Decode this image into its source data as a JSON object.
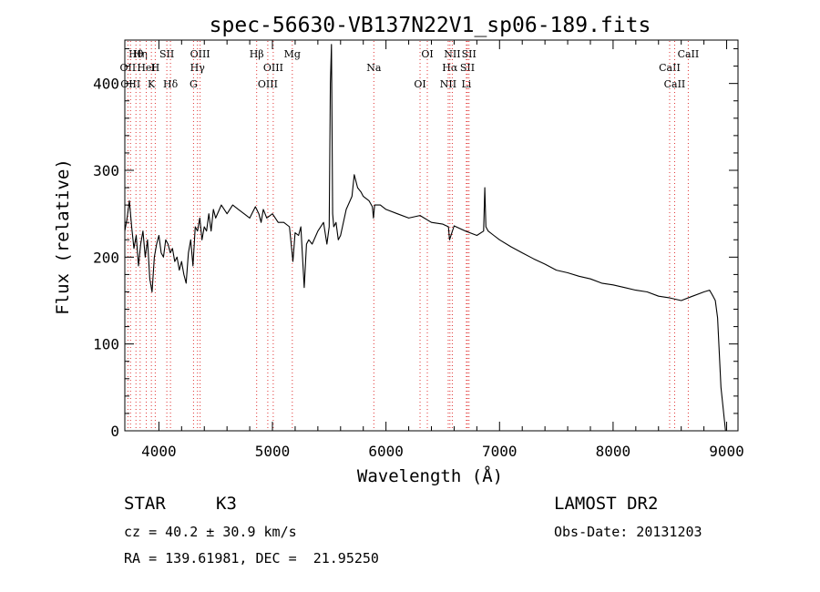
{
  "chart_data": {
    "type": "line",
    "title": "spec-56630-VB137N22V1_sp06-189.fits",
    "xlabel": "Wavelength (Å)",
    "ylabel": "Flux (relative)",
    "xlim": [
      3700,
      9100
    ],
    "ylim": [
      0,
      450
    ],
    "xticks": [
      4000,
      5000,
      6000,
      7000,
      8000,
      9000
    ],
    "yticks": [
      0,
      100,
      200,
      300,
      400
    ],
    "grid": false,
    "series": [
      {
        "color": "#000000",
        "x": [
          3700,
          3720,
          3740,
          3760,
          3780,
          3800,
          3820,
          3840,
          3860,
          3880,
          3900,
          3920,
          3940,
          3960,
          3980,
          4000,
          4020,
          4040,
          4060,
          4080,
          4100,
          4120,
          4140,
          4160,
          4180,
          4200,
          4220,
          4240,
          4260,
          4280,
          4300,
          4320,
          4340,
          4360,
          4380,
          4400,
          4420,
          4440,
          4460,
          4480,
          4500,
          4550,
          4600,
          4650,
          4700,
          4750,
          4800,
          4850,
          4880,
          4900,
          4920,
          4950,
          5000,
          5050,
          5100,
          5150,
          5180,
          5200,
          5230,
          5250,
          5280,
          5300,
          5320,
          5350,
          5400,
          5450,
          5480,
          5500,
          5510,
          5520,
          5530,
          5540,
          5560,
          5580,
          5600,
          5650,
          5700,
          5720,
          5750,
          5780,
          5800,
          5850,
          5880,
          5890,
          5900,
          5950,
          6000,
          6100,
          6200,
          6300,
          6400,
          6500,
          6550,
          6560,
          6600,
          6700,
          6800,
          6860,
          6870,
          6880,
          6900,
          6950,
          7000,
          7100,
          7200,
          7300,
          7400,
          7500,
          7600,
          7700,
          7800,
          7900,
          8000,
          8100,
          8200,
          8300,
          8400,
          8500,
          8600,
          8700,
          8800,
          8850,
          8880,
          8900,
          8920,
          8950,
          8990,
          9000
        ],
        "y": [
          230,
          245,
          265,
          235,
          210,
          225,
          190,
          215,
          230,
          200,
          220,
          175,
          160,
          200,
          215,
          225,
          205,
          200,
          220,
          215,
          205,
          210,
          195,
          200,
          185,
          195,
          180,
          170,
          205,
          220,
          190,
          235,
          230,
          245,
          220,
          235,
          230,
          250,
          230,
          255,
          245,
          260,
          250,
          260,
          255,
          250,
          245,
          258,
          250,
          240,
          255,
          245,
          250,
          240,
          240,
          235,
          195,
          228,
          225,
          235,
          165,
          215,
          220,
          215,
          230,
          240,
          215,
          235,
          400,
          445,
          250,
          235,
          240,
          220,
          225,
          255,
          270,
          295,
          280,
          275,
          270,
          265,
          258,
          245,
          260,
          260,
          255,
          250,
          245,
          248,
          240,
          238,
          235,
          220,
          236,
          230,
          225,
          230,
          280,
          235,
          230,
          225,
          220,
          212,
          205,
          198,
          192,
          185,
          182,
          178,
          175,
          170,
          168,
          165,
          162,
          160,
          155,
          153,
          150,
          155,
          160,
          162,
          155,
          150,
          130,
          50,
          0,
          0
        ]
      }
    ],
    "line_marks": [
      {
        "label": "Hθ",
        "x": 3798
      },
      {
        "label": "OII",
        "x": 3727
      },
      {
        "label": "OIII",
        "x": 3750
      },
      {
        "label": "Hη",
        "x": 3835
      },
      {
        "label": "HeI",
        "x": 3889
      },
      {
        "label": "K",
        "x": 3934
      },
      {
        "label": "SII",
        "x": 4070
      },
      {
        "label": "H",
        "x": 3968
      },
      {
        "label": "Hδ",
        "x": 4102
      },
      {
        "label": "OIII",
        "x": 4363
      },
      {
        "label": "Hγ",
        "x": 4340
      },
      {
        "label": "G",
        "x": 4305
      },
      {
        "label": "Hβ",
        "x": 4861
      },
      {
        "label": "OIII",
        "x": 5007
      },
      {
        "label": "OIII",
        "x": 4959
      },
      {
        "label": "Mg",
        "x": 5175
      },
      {
        "label": "Na",
        "x": 5893
      },
      {
        "label": "OI",
        "x": 6300
      },
      {
        "label": "OI",
        "x": 6364
      },
      {
        "label": "Hα",
        "x": 6563
      },
      {
        "label": "NII",
        "x": 6548
      },
      {
        "label": "NII",
        "x": 6584
      },
      {
        "label": "SII",
        "x": 6717
      },
      {
        "label": "Li",
        "x": 6708
      },
      {
        "label": "SII",
        "x": 6731
      },
      {
        "label": "CaII",
        "x": 8498
      },
      {
        "label": "CaII",
        "x": 8542
      },
      {
        "label": "CaII",
        "x": 8662
      }
    ]
  },
  "info": {
    "class": "STAR",
    "subclass": "K3",
    "survey": "LAMOST DR2",
    "cz": "cz = 40.2 ± 30.9 km/s",
    "obsdate": "Obs-Date: 20131203",
    "radec": "RA = 139.61981, DEC =  21.95250"
  }
}
